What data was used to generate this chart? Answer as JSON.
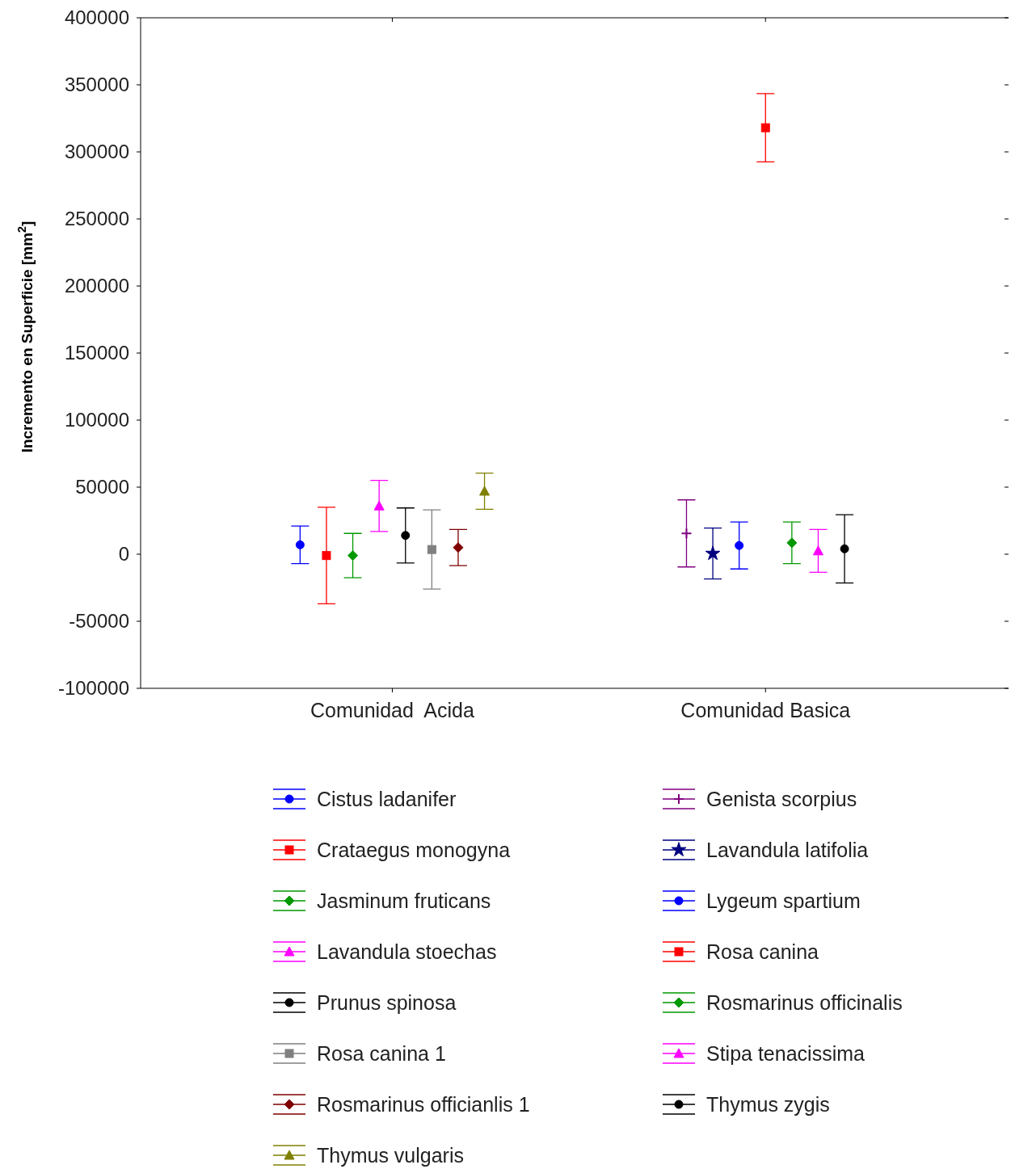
{
  "chart_data": {
    "type": "scatter",
    "ylabel": "Incremento en Superficie [mm$^{2}$]",
    "categories": [
      "Comunidad  Acida",
      "Comunidad Basica"
    ],
    "ylim": [
      -100000,
      400000
    ],
    "yticks": [
      -100000,
      -50000,
      0,
      50000,
      100000,
      150000,
      200000,
      250000,
      300000,
      350000,
      400000
    ],
    "legend": "bottom",
    "grid": false,
    "series": [
      {
        "name": "Cistus ladanifer",
        "color": "#0000ff",
        "marker": "circle",
        "values": [
          7000,
          null
        ],
        "errors": [
          14000,
          null
        ]
      },
      {
        "name": "Crataegus monogyna",
        "color": "#ff0000",
        "marker": "square",
        "values": [
          -1000,
          null
        ],
        "errors": [
          36000,
          null
        ]
      },
      {
        "name": "Jasminum fruticans",
        "color": "#009900",
        "marker": "diamond",
        "values": [
          -1000,
          null
        ],
        "errors": [
          16500,
          null
        ]
      },
      {
        "name": "Lavandula stoechas",
        "color": "#ff00ff",
        "marker": "triangle",
        "values": [
          36000,
          null
        ],
        "errors": [
          19000,
          null
        ]
      },
      {
        "name": "Prunus spinosa",
        "color": "#000000",
        "marker": "circle",
        "values": [
          14000,
          null
        ],
        "errors": [
          20500,
          null
        ]
      },
      {
        "name": "Rosa canina 1",
        "color": "#808080",
        "marker": "square",
        "values": [
          3500,
          null
        ],
        "errors": [
          29500,
          null
        ]
      },
      {
        "name": "Rosmarinus officianlis 1",
        "color": "#800000",
        "marker": "diamond",
        "values": [
          5000,
          null
        ],
        "errors": [
          13500,
          null
        ]
      },
      {
        "name": "Thymus vulgaris",
        "color": "#808000",
        "marker": "triangle",
        "values": [
          47000,
          null
        ],
        "errors": [
          13500,
          null
        ]
      },
      {
        "name": "Genista scorpius",
        "color": "#800080",
        "marker": "cross",
        "values": [
          null,
          15500
        ],
        "errors": [
          null,
          25000
        ]
      },
      {
        "name": "Lavandula latifolia",
        "color": "#000080",
        "marker": "star",
        "values": [
          null,
          500
        ],
        "errors": [
          null,
          19000
        ]
      },
      {
        "name": "Lygeum spartium",
        "color": "#0000ff",
        "marker": "circle",
        "values": [
          null,
          6500
        ],
        "errors": [
          null,
          17500
        ]
      },
      {
        "name": "Rosa canina",
        "color": "#ff0000",
        "marker": "square",
        "values": [
          null,
          318000
        ],
        "errors": [
          null,
          25500
        ]
      },
      {
        "name": "Rosmarinus officinalis",
        "color": "#009900",
        "marker": "diamond",
        "values": [
          null,
          8500
        ],
        "errors": [
          null,
          15500
        ]
      },
      {
        "name": "Stipa tenacissima",
        "color": "#ff00ff",
        "marker": "triangle",
        "values": [
          null,
          2500
        ],
        "errors": [
          null,
          16000
        ]
      },
      {
        "name": "Thymus zygis",
        "color": "#000000",
        "marker": "circle",
        "values": [
          null,
          4000
        ],
        "errors": [
          null,
          25500
        ]
      }
    ]
  }
}
